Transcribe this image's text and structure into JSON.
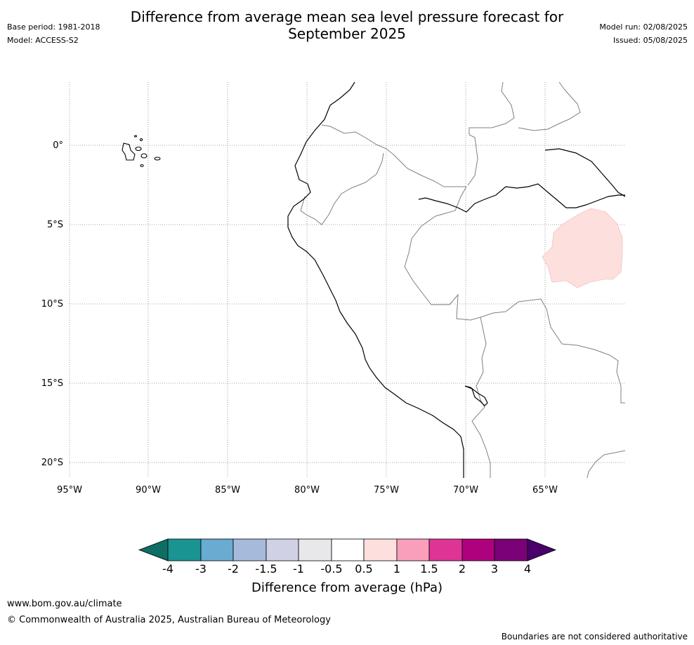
{
  "header": {
    "title_line1": "Difference from average mean sea level pressure forecast for",
    "title_line2": "September 2025",
    "base_period": "Base period: 1981-2018",
    "model": "Model: ACCESS-S2",
    "model_run": "Model run: 02/08/2025",
    "issued": "Issued: 05/08/2025"
  },
  "map": {
    "lon_labels": [
      "95°W",
      "90°W",
      "85°W",
      "80°W",
      "75°W",
      "70°W",
      "65°W"
    ],
    "lat_labels": [
      "0°",
      "5°S",
      "10°S",
      "15°S",
      "20°S"
    ],
    "anomaly_region_color": "#fddfdd",
    "coastline_color": "#000000",
    "border_color": "#808080"
  },
  "colorbar": {
    "tick_labels": [
      "-4",
      "-3",
      "-2",
      "-1.5",
      "-1",
      "-0.5",
      "0.5",
      "1",
      "1.5",
      "2",
      "3",
      "4"
    ],
    "colors": [
      "#0c6e64",
      "#1a9393",
      "#6aabd2",
      "#a6bbdb",
      "#d1d1e6",
      "#e8e8ea",
      "#ffffff",
      "#fddfdd",
      "#f99fbc",
      "#dd3496",
      "#ae017e",
      "#7a0177",
      "#49006a"
    ],
    "label": "Difference from average (hPa)"
  },
  "footer": {
    "website": "www.bom.gov.au/climate",
    "copyright": "© Commonwealth of Australia 2025, Australian Bureau of Meteorology",
    "disclaimer": "Boundaries are not considered authoritative"
  }
}
